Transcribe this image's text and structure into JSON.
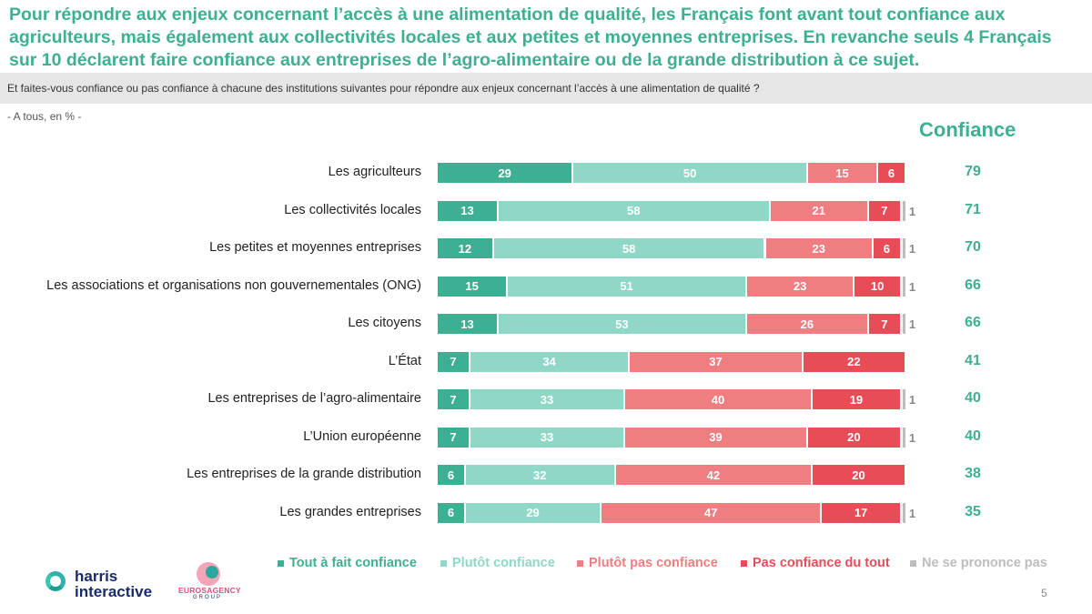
{
  "headline": "Pour répondre aux enjeux concernant l’accès à une alimentation de qualité, les Français font avant tout confiance aux agriculteurs, mais également aux collectivités locales et aux petites et moyennes entreprises. En revanche seuls 4 Français sur 10 déclarent faire confiance aux entreprises de l’agro-alimentaire ou de la grande distribution à ce sujet.",
  "question": "Et faites-vous confiance ou pas confiance à chacune des institutions suivantes pour répondre aux enjeux concernant l’accès à une alimentation de qualité ?",
  "base": "- A tous, en % -",
  "confiance_header": "Confiance",
  "logos": {
    "harris_line1": "harris",
    "harris_line2": "interactive",
    "euros": "EUROSAGENCY",
    "euros_sub": "GROUP"
  },
  "page_number": "5",
  "colors": {
    "tout_a_fait": "#3daf92",
    "plutot": "#8fd8c7",
    "plutot_pas": "#f07d80",
    "pas_du_tout": "#e84d57",
    "nsp": "#bdbdbd",
    "accent": "#3daf92"
  },
  "chart_data": {
    "type": "bar",
    "orientation": "horizontal-stacked-100",
    "categories": [
      "Les agriculteurs",
      "Les collectivités locales",
      "Les petites et moyennes entreprises",
      "Les associations et organisations non gouvernementales (ONG)",
      "Les citoyens",
      "L’État",
      "Les entreprises de l’agro-alimentaire",
      "L’Union  européenne",
      "Les entreprises de la grande distribution",
      "Les grandes entreprises"
    ],
    "series": [
      {
        "name": "Tout à fait confiance",
        "values": [
          29,
          13,
          12,
          15,
          13,
          7,
          7,
          7,
          6,
          6
        ]
      },
      {
        "name": "Plutôt confiance",
        "values": [
          50,
          58,
          58,
          51,
          53,
          34,
          33,
          33,
          32,
          29
        ]
      },
      {
        "name": "Plutôt pas confiance",
        "values": [
          15,
          21,
          23,
          23,
          26,
          37,
          40,
          39,
          42,
          47
        ]
      },
      {
        "name": "Pas confiance du tout",
        "values": [
          6,
          7,
          6,
          10,
          7,
          22,
          19,
          20,
          20,
          17
        ]
      },
      {
        "name": "Ne se prononce pas",
        "values": [
          null,
          1,
          1,
          1,
          1,
          null,
          1,
          1,
          null,
          1
        ]
      }
    ],
    "confiance_totals": [
      79,
      71,
      70,
      66,
      66,
      41,
      40,
      40,
      38,
      35
    ],
    "legend_position": "bottom"
  }
}
